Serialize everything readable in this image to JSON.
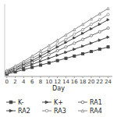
{
  "chart_data": {
    "type": "line",
    "x": [
      0,
      2,
      4,
      6,
      8,
      10,
      12,
      14,
      16,
      18,
      20,
      22,
      24
    ],
    "series": [
      {
        "name": "K-",
        "color": "#444444",
        "marker": "square",
        "values": [
          185,
          188,
          191,
          194,
          197,
          200,
          203,
          206,
          209,
          212,
          215,
          218,
          221
        ]
      },
      {
        "name": "K+",
        "color": "#444444",
        "marker": "triangle-right",
        "values": [
          186,
          190,
          194,
          198,
          202,
          206,
          210,
          214,
          218,
          222,
          226,
          230,
          234
        ]
      },
      {
        "name": "RA1",
        "color": "#666666",
        "marker": "circle-open",
        "values": [
          187,
          191,
          196,
          201,
          206,
          211,
          216,
          221,
          226,
          231,
          236,
          241,
          246
        ]
      },
      {
        "name": "RA2",
        "color": "#444444",
        "marker": "triangle-right",
        "values": [
          188,
          193,
          198,
          203,
          209,
          215,
          221,
          227,
          233,
          239,
          245,
          251,
          257
        ]
      },
      {
        "name": "RA3",
        "color": "#888888",
        "marker": "circle-open",
        "values": [
          189,
          194,
          200,
          206,
          212,
          218,
          225,
          231,
          238,
          244,
          251,
          257,
          264
        ]
      },
      {
        "name": "RA4",
        "color": "#888888",
        "marker": "triangle-up-open",
        "values": [
          190,
          196,
          202,
          209,
          216,
          223,
          230,
          237,
          244,
          251,
          258,
          265,
          272
        ]
      }
    ],
    "xlabel": "Day",
    "xlim": [
      -0.5,
      25
    ],
    "ylim": [
      182,
      278
    ],
    "xticks": [
      0,
      2,
      4,
      6,
      8,
      10,
      12,
      14,
      16,
      18,
      20,
      22,
      24
    ],
    "tick_labels": "x",
    "legend": "bottom"
  }
}
